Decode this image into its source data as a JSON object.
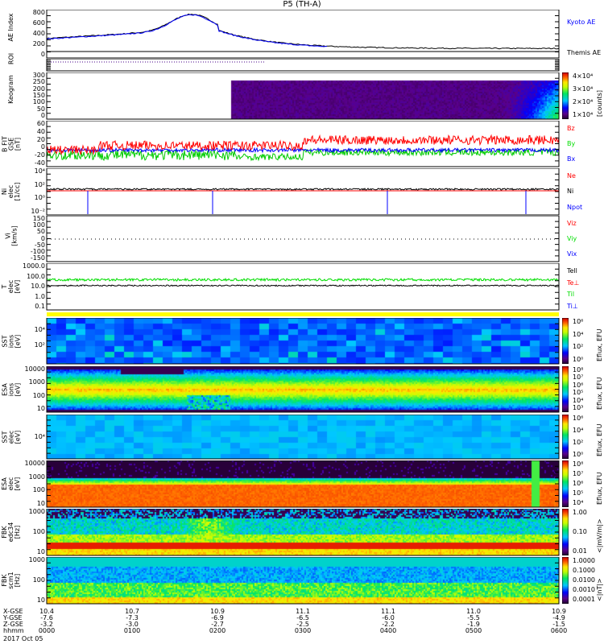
{
  "title": "P5 (TH-A)",
  "chart_data": {
    "type": "multi-panel time series / spectrogram",
    "date": "2017 Oct 05",
    "x_labels": {
      "rows": [
        "X-GSE",
        "Y-GSE",
        "Z-GSE",
        "hhmm"
      ],
      "x_gse": [
        "10.4",
        "10.7",
        "10.9",
        "11.1",
        "11.1",
        "11.0",
        "10.9"
      ],
      "y_gse": [
        "-7.6",
        "-7.3",
        "-6.9",
        "-6.5",
        "-6.0",
        "-5.5",
        "-4.9"
      ],
      "z_gse": [
        "-3.2",
        "-3.0",
        "-2.7",
        "-2.5",
        "-2.2",
        "-1.9",
        "-1.5"
      ],
      "hhmm": [
        "0000",
        "0100",
        "0200",
        "0300",
        "0400",
        "0500",
        "0600"
      ]
    },
    "panels": [
      {
        "id": "ae",
        "ylabel": "AE Index",
        "ticks": [
          "800",
          "600",
          "400",
          "200",
          "0"
        ],
        "ylim": [
          -50,
          800
        ],
        "legend": [
          "Kyoto AE",
          "Themis AE"
        ],
        "colors": [
          "#0000ff",
          "#000000"
        ],
        "kyoto_ae_hourly": [
          250,
          320,
          600,
          200,
          60,
          null,
          null
        ],
        "themis_ae_hourly": [
          240,
          330,
          610,
          210,
          70,
          60,
          50
        ]
      },
      {
        "id": "roi",
        "ylabel": "ROI"
      },
      {
        "id": "keogram",
        "ylabel": "Keogram",
        "ticks": [
          "300",
          "250",
          "200",
          "150",
          "100",
          "50",
          "0"
        ],
        "colorbar": [
          "4×10⁴",
          "3×10⁴",
          "2×10⁴",
          "1×10⁴"
        ],
        "cb_unit": "[counts]"
      },
      {
        "id": "bfit",
        "ylabel": "B FIT\nGSE\n[nT]",
        "ticks": [
          "60",
          "40",
          "20",
          "0",
          "-20",
          "-40"
        ],
        "legend": [
          "Bz",
          "By",
          "Bx"
        ],
        "colors": [
          "#ff0000",
          "#00dd00",
          "#0000ff"
        ]
      },
      {
        "id": "ni",
        "ylabel": "Ni\nelec\n[1/cc]",
        "ticks": [
          "10⁴",
          "10²",
          "10⁰",
          "10⁻²"
        ],
        "legend": [
          "Ne",
          "Ni",
          "Npot"
        ],
        "colors": [
          "#ff0000",
          "#000000",
          "#0000ff"
        ]
      },
      {
        "id": "vi",
        "ylabel": "Vi\n[km/s]",
        "ticks": [
          "150",
          "100",
          "50",
          "0",
          "-50",
          "-100",
          "-150"
        ],
        "legend": [
          "Viz",
          "Viy",
          "Vix"
        ],
        "colors": [
          "#ff0000",
          "#00dd00",
          "#0000ff"
        ]
      },
      {
        "id": "ti",
        "ylabel": "T\nelec\n[eV]",
        "ticks": [
          "1000.0",
          "100.0",
          "10.0",
          "1.0",
          "0.1"
        ],
        "legend": [
          "Tell",
          "Te⊥",
          "Til",
          "Ti⊥"
        ],
        "colors": [
          "#000000",
          "#ff0000",
          "#00dd00",
          "#0000ff"
        ]
      },
      {
        "id": "sst_i",
        "ylabel": "SST\nions\n[eV]",
        "ticks": [
          "10⁴",
          "10²"
        ],
        "colorbar": [
          "10⁶",
          "10⁴",
          "10²",
          "10⁰"
        ],
        "cb_unit": "Eflux, EFU"
      },
      {
        "id": "esa_i",
        "ylabel": "ESA\nions\n[eV]",
        "ticks": [
          "10000",
          "1000",
          "100",
          "10"
        ],
        "colorbar": [
          "10⁸",
          "10⁷",
          "10⁶",
          "10⁵",
          "10⁴",
          "10³"
        ],
        "cb_unit": "Eflux, EFU"
      },
      {
        "id": "sst_e",
        "ylabel": "SST\nelec\n[eV]",
        "ticks": [
          "10⁴"
        ],
        "colorbar": [
          "10⁶",
          "10⁴",
          "10²",
          "10⁰"
        ],
        "cb_unit": "Eflux, EFU"
      },
      {
        "id": "esa_e",
        "ylabel": "ESA\nelec\n[eV]",
        "ticks": [
          "10000",
          "1000",
          "100",
          "10"
        ],
        "colorbar": [
          "10⁸",
          "10⁷",
          "10⁶",
          "10⁵",
          "10⁴"
        ],
        "cb_unit": "Eflux, EFU"
      },
      {
        "id": "fbk_edc",
        "ylabel": "FBK\nedc34\n[Hz]",
        "ticks": [
          "1000",
          "100",
          "10"
        ],
        "colorbar": [
          "1.00",
          "0.10",
          "0.01"
        ],
        "cb_unit": "<|mV/m|>"
      },
      {
        "id": "fbk_scm",
        "ylabel": "FBK\nscm1\n[Hz]",
        "ticks": [
          "1000",
          "100",
          "10"
        ],
        "colorbar": [
          "1.0000",
          "0.1000",
          "0.0100",
          "0.0010",
          "0.0001"
        ],
        "cb_unit": "<|nT|>"
      }
    ]
  }
}
